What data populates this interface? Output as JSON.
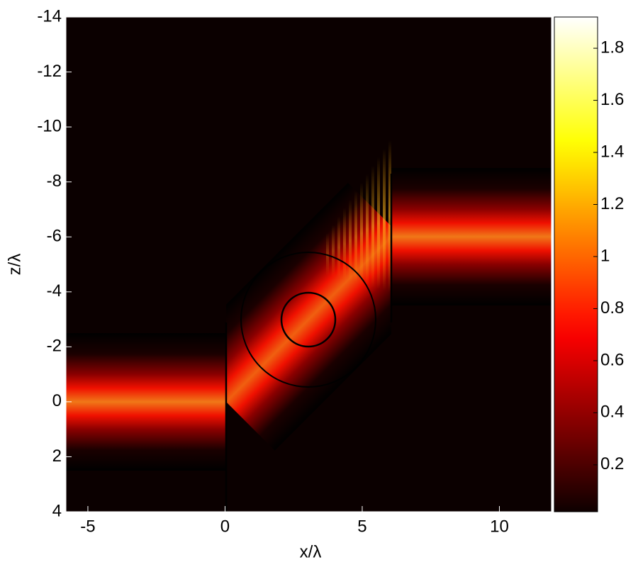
{
  "chart_data": {
    "type": "heatmap",
    "x_label": "x/λ",
    "y_label": "z/λ",
    "xlim": [
      -5.8,
      11.9
    ],
    "ylim": [
      4,
      -14
    ],
    "xticks": [
      -5,
      0,
      5,
      10
    ],
    "yticks": [
      -14,
      -12,
      -10,
      -8,
      -6,
      -4,
      -2,
      0,
      2,
      4
    ],
    "colorbar": {
      "colormap": "hot",
      "lim": [
        0.02,
        1.92
      ],
      "ticks": [
        0.2,
        0.4,
        0.6,
        0.8,
        1,
        1.2,
        1.4,
        1.6,
        1.8
      ]
    }
  }
}
